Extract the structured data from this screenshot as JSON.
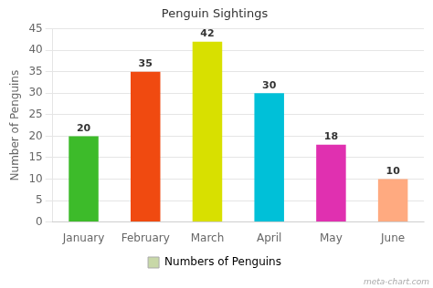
{
  "chart_data": {
    "type": "bar",
    "title": "Penguin Sightings",
    "ylabel": "Number of Penguins",
    "categories": [
      "January",
      "February",
      "March",
      "April",
      "May",
      "June"
    ],
    "series": [
      {
        "name": "Numbers of Penguins",
        "color": "#c8d8a8",
        "colors": [
          "#3dbb2a",
          "#f04a10",
          "#d8e000",
          "#00c0d8",
          "#e030b0",
          "#ffaa80"
        ],
        "values": [
          20,
          35,
          42,
          30,
          18,
          10
        ]
      }
    ],
    "ylim": [
      0,
      45
    ],
    "yticks": [
      0,
      5,
      10,
      15,
      20,
      25,
      30,
      35,
      40,
      45
    ],
    "grid": true,
    "legend": "bottom",
    "data_labels": true,
    "annotations": [
      "meta-chart.com"
    ]
  }
}
